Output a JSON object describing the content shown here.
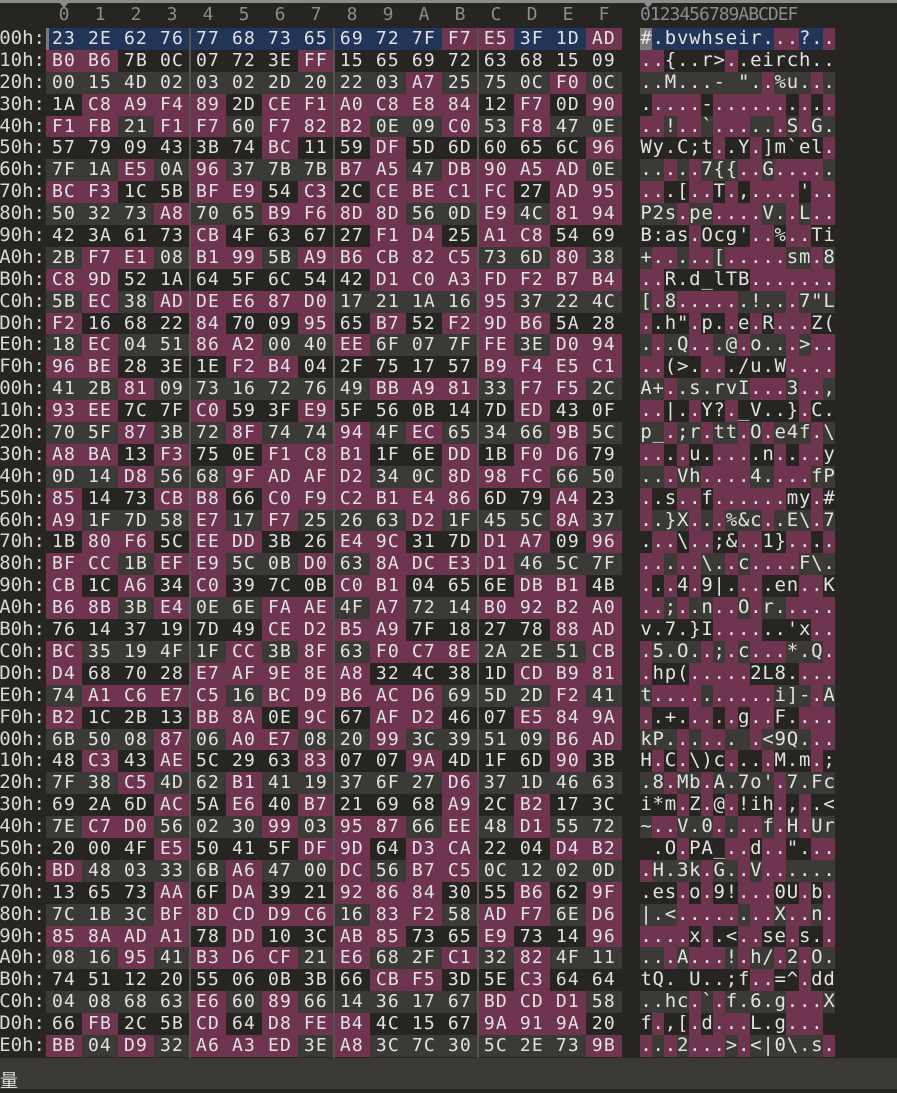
{
  "colors": {
    "background": "#262522",
    "row_dark": "#262522",
    "row_light": "#3b3a36",
    "high_byte": "#6e3450",
    "selection": "#223458",
    "cursor": "#7a7a7a",
    "text": "#e2e2e2",
    "header_text": "#8d8d8d"
  },
  "header": {
    "columns": [
      "0",
      "1",
      "2",
      "3",
      "4",
      "5",
      "6",
      "7",
      "8",
      "9",
      "A",
      "B",
      "C",
      "D",
      "E",
      "F"
    ],
    "ascii_header": "0123456789ABCDEF"
  },
  "selection": {
    "row": 0,
    "cursor_col": 0
  },
  "row_labels": [
    "00h:",
    "10h:",
    "20h:",
    "30h:",
    "40h:",
    "50h:",
    "60h:",
    "70h:",
    "80h:",
    "90h:",
    "A0h:",
    "B0h:",
    "C0h:",
    "D0h:",
    "E0h:",
    "F0h:",
    "00h:",
    "10h:",
    "20h:",
    "30h:",
    "40h:",
    "50h:",
    "60h:",
    "70h:",
    "80h:",
    "90h:",
    "A0h:",
    "B0h:",
    "C0h:",
    "D0h:",
    "E0h:",
    "F0h:",
    "00h:",
    "10h:",
    "20h:",
    "30h:",
    "40h:",
    "50h:",
    "60h:",
    "70h:",
    "80h:",
    "90h:",
    "A0h:",
    "B0h:",
    "C0h:",
    "D0h:",
    "E0h:"
  ],
  "rows": [
    "23 2E 62 76 77 68 73 65 69 72 7F F7 E5 3F 1D AD",
    "B0 B6 7B 0C 07 72 3E FF 15 65 69 72 63 68 15 09",
    "00 15 4D 02 03 02 2D 20 22 03 A7 25 75 0C F0 0C",
    "1A C8 A9 F4 89 2D CE F1 A0 C8 E8 84 12 F7 0D 90",
    "F1 FB 21 F1 F7 60 F7 82 B2 0E 09 C0 53 F8 47 0E",
    "57 79 09 43 3B 74 BC 11 59 DF 5D 6D 60 65 6C 96",
    "7F 1A E5 0A 96 37 7B 7B B7 A5 47 DB 90 A5 AD 0E",
    "BC F3 1C 5B BF E9 54 C3 2C CE BE C1 FC 27 AD 95",
    "50 32 73 A8 70 65 B9 F6 8D 8D 56 0D E9 4C 81 94",
    "42 3A 61 73 CB 4F 63 67 27 F1 D4 25 A1 C8 54 69",
    "2B F7 E1 08 B1 99 5B A9 B6 CB 82 C5 73 6D 80 38",
    "C8 9D 52 1A 64 5F 6C 54 42 D1 C0 A3 FD F2 B7 B4",
    "5B EC 38 AD DE E6 87 D0 17 21 1A 16 95 37 22 4C",
    "F2 16 68 22 84 70 09 95 65 B7 52 F2 9D B6 5A 28",
    "18 EC 04 51 86 A2 00 40 EE 6F 07 7F FE 3E D0 94",
    "96 BE 28 3E 1E F2 B4 04 2F 75 17 57 B9 F4 E5 C1",
    "41 2B 81 09 73 16 72 76 49 BB A9 81 33 F7 F5 2C",
    "93 EE 7C 7F C0 59 3F E9 5F 56 0B 14 7D ED 43 0F",
    "70 5F 87 3B 72 8F 74 74 94 4F EC 65 34 66 9B 5C",
    "A8 BA 13 F3 75 0E F1 C8 B1 1F 6E DD 1B F0 D6 79",
    "0D 14 D8 56 68 9F AD AF D2 34 0C 8D 98 FC 66 50",
    "85 14 73 CB B8 66 C0 F9 C2 B1 E4 86 6D 79 A4 23",
    "A9 1F 7D 58 E7 17 F7 25 26 63 D2 1F 45 5C 8A 37",
    "1B 80 F6 5C EE DD 3B 26 E4 9C 31 7D D1 A7 09 96",
    "BF CC 1B EF E9 5C 0B D0 63 8A DC E3 D1 46 5C 7F",
    "CB 1C A6 34 C0 39 7C 0B C0 B1 04 65 6E DB B1 4B",
    "B6 8B 3B E4 0E 6E FA AE 4F A7 72 14 B0 92 B2 A0",
    "76 14 37 19 7D 49 CE D2 B5 A9 7F 18 27 78 88 AD",
    "BC 35 19 4F 1F CC 3B 8F 63 F0 C7 8E 2A 2E 51 CB",
    "D4 68 70 28 E7 AF 9E 8E A8 32 4C 38 1D CD B9 81",
    "74 A1 C6 E7 C5 16 BC D9 B6 AC D6 69 5D 2D F2 41",
    "B2 1C 2B 13 BB 8A 0E 9C 67 AF D2 46 07 E5 84 9A",
    "6B 50 08 87 06 A0 E7 08 20 99 3C 39 51 09 B6 AD",
    "48 C3 43 AE 5C 29 63 83 07 07 9A 4D 1F 6D 90 3B",
    "7F 38 C5 4D 62 B1 41 19 37 6F 27 D6 37 1D 46 63",
    "69 2A 6D AC 5A E6 40 B7 21 69 68 A9 2C B2 17 3C",
    "7E C7 D0 56 02 30 99 03 95 87 66 EE 48 D1 55 72",
    "20 00 4F E5 50 41 5F DF 9D 64 D3 CA 22 04 D4 B2",
    "BD 48 03 33 6B A6 47 00 DC 56 B7 C5 0C 12 02 0D",
    "13 65 73 AA 6F DA 39 21 92 86 84 30 55 B6 62 9F",
    "7C 1B 3C BF 8D CD D9 C6 16 83 F2 58 AD F7 6E D6",
    "85 8A AD A1 78 DD 10 3C AB 85 73 65 E9 73 14 96",
    "08 16 95 41 B3 D6 CF 21 E6 68 2F C1 32 82 4F 11",
    "74 51 12 20 55 06 0B 3B 66 CB F5 3D 5E C3 64 64",
    "04 08 68 63 E6 60 89 66 14 36 17 67 BD CD D1 58",
    "66 FB 2C 5B CD 64 D8 FE B4 4C 15 67 9A 91 9A 20",
    "BB 04 D9 32 A6 A3 ED 3E A8 3C 7C 30 5C 2E 73 9B"
  ],
  "status": {
    "text": "量"
  }
}
